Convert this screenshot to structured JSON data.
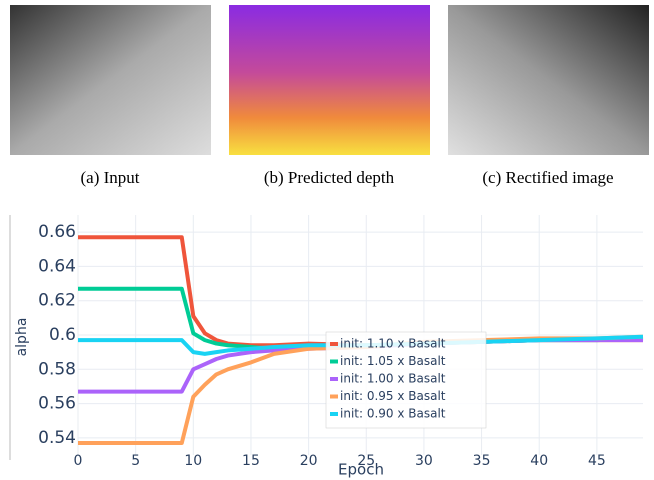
{
  "captions": [
    "(a) Input",
    "(b) Predicted depth",
    "(c) Rectified image"
  ],
  "chart_data": {
    "type": "line",
    "xlabel": "Epoch",
    "ylabel": "alpha",
    "x": [
      0,
      9,
      10,
      11,
      12,
      13,
      15,
      17,
      20,
      25,
      30,
      35,
      40,
      45,
      49
    ],
    "series": [
      {
        "name": "init: 1.10 x Basalt",
        "color": "#ef553b",
        "values": [
          0.657,
          0.657,
          0.611,
          0.601,
          0.597,
          0.595,
          0.594,
          0.594,
          0.595,
          0.594,
          0.595,
          0.596,
          0.597,
          0.597,
          0.597
        ]
      },
      {
        "name": "init: 1.05 x Basalt",
        "color": "#00cc96",
        "values": [
          0.627,
          0.627,
          0.601,
          0.597,
          0.595,
          0.594,
          0.593,
          0.592,
          0.593,
          0.594,
          0.595,
          0.596,
          0.597,
          0.597,
          0.598
        ]
      },
      {
        "name": "init: 1.00 x Basalt",
        "color": "#ab63fa",
        "values": [
          0.567,
          0.567,
          0.58,
          0.583,
          0.586,
          0.588,
          0.59,
          0.591,
          0.592,
          0.593,
          0.595,
          0.596,
          0.597,
          0.597,
          0.597
        ]
      },
      {
        "name": "init: 0.95 x Basalt",
        "color": "#ffa15a",
        "values": [
          0.537,
          0.537,
          0.564,
          0.571,
          0.577,
          0.58,
          0.584,
          0.589,
          0.592,
          0.593,
          0.596,
          0.597,
          0.598,
          0.598,
          0.599
        ]
      },
      {
        "name": "init: 0.90 x Basalt",
        "color": "#19d3f3",
        "values": [
          0.597,
          0.597,
          0.59,
          0.589,
          0.59,
          0.591,
          0.592,
          0.593,
          0.594,
          0.594,
          0.595,
          0.596,
          0.597,
          0.598,
          0.599
        ]
      }
    ],
    "xlim": [
      0,
      49
    ],
    "xticks": [
      0,
      5,
      10,
      15,
      20,
      25,
      30,
      35,
      40,
      45
    ],
    "ylim": [
      0.53,
      0.67
    ],
    "yticks": [
      0.54,
      0.56,
      0.58,
      0.6,
      0.62,
      0.64,
      0.66
    ],
    "grid": true
  }
}
